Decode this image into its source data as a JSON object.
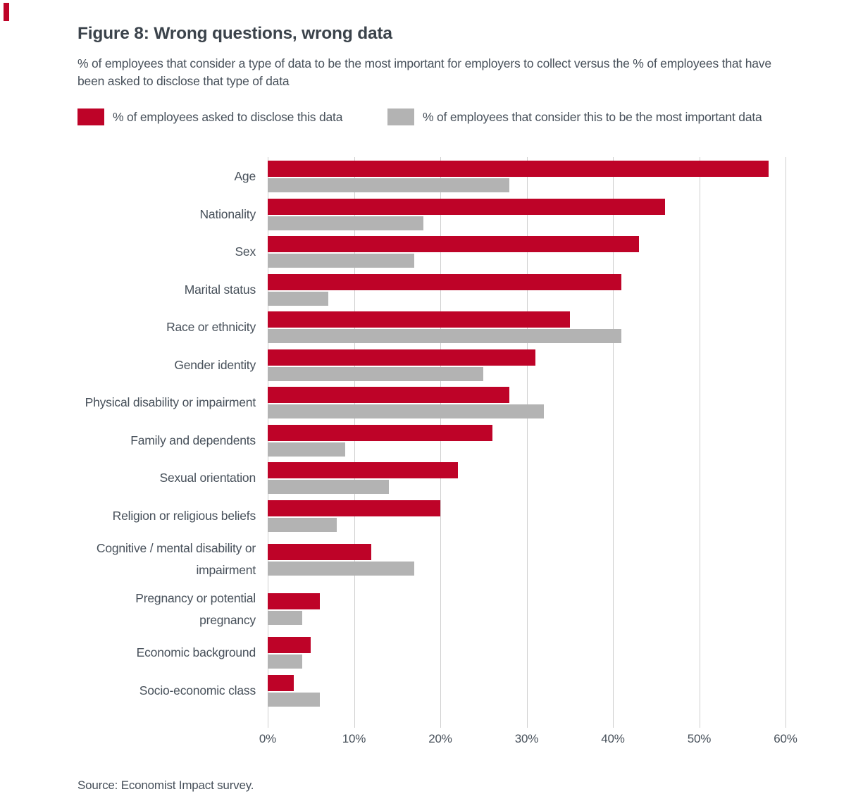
{
  "page": {
    "title": "Figure 8: Wrong questions, wrong data",
    "subtitle": "% of employees that consider a type of data to be the most important for employers to collect versus the % of employees that have been asked to disclose that type of data",
    "source": "Source: Economist Impact survey."
  },
  "colors": {
    "accent_red": "#BE0328",
    "bar_gray": "#B3B3B3",
    "gridline": "#CFCFCF",
    "title_text": "#3B434B",
    "body_text": "#47505A"
  },
  "legend": [
    {
      "label": "% of employees asked to disclose this data",
      "color": "#BE0328"
    },
    {
      "label": "% of employees that consider this to be the most important data",
      "color": "#B3B3B3"
    }
  ],
  "chart_data": {
    "type": "bar",
    "orientation": "horizontal",
    "title": "Figure 8: Wrong questions, wrong data",
    "xlim": [
      0,
      60
    ],
    "x_ticks": [
      "0%",
      "10%",
      "20%",
      "30%",
      "40%",
      "50%",
      "60%"
    ],
    "grid": "vertical",
    "legend_position": "top",
    "categories": [
      "Age",
      "Nationality",
      "Sex",
      "Marital status",
      "Race or ethnicity",
      "Gender identity",
      "Physical disability or impairment",
      "Family and dependents",
      "Sexual orientation",
      "Religion or religious beliefs",
      "Cognitive / mental disability or impairment",
      "Pregnancy or potential pregnancy",
      "Economic background",
      "Socio-economic class"
    ],
    "series": [
      {
        "name": "% of employees asked to disclose this data",
        "color": "#BE0328",
        "values": [
          58,
          46,
          43,
          41,
          35,
          31,
          28,
          26,
          22,
          20,
          12,
          6,
          5,
          3
        ]
      },
      {
        "name": "% of employees that consider this to be the most important data",
        "color": "#B3B3B3",
        "values": [
          28,
          18,
          17,
          7,
          41,
          25,
          32,
          9,
          14,
          8,
          17,
          4,
          4,
          6
        ]
      }
    ]
  }
}
